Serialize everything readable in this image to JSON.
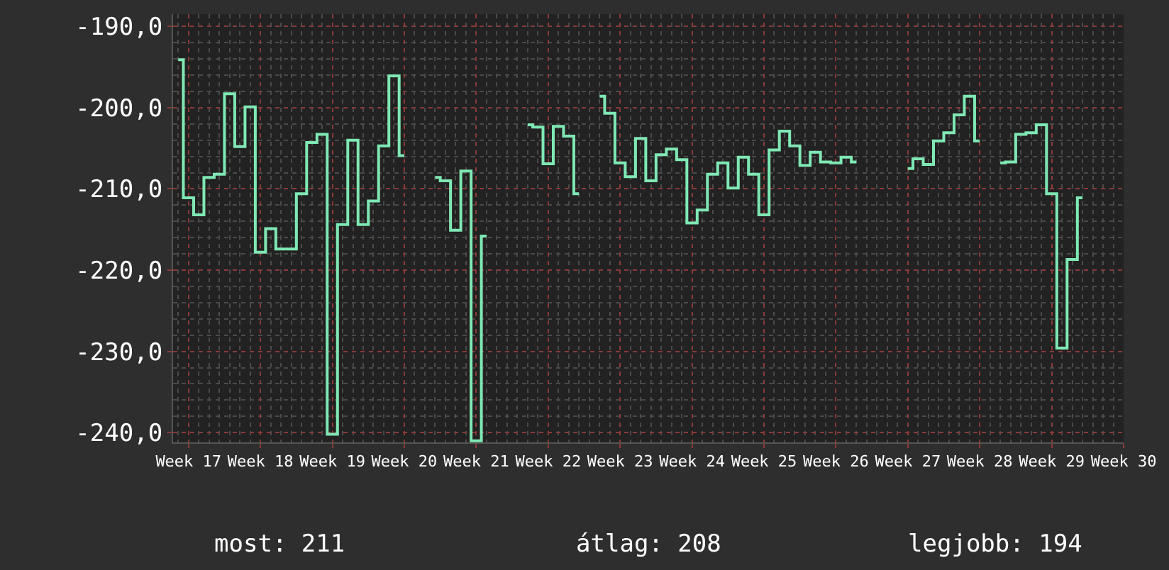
{
  "chart_data": {
    "type": "step",
    "categories": [
      null,
      "Week 17",
      null,
      null,
      null,
      null,
      null,
      null,
      "Week 18",
      null,
      null,
      null,
      null,
      null,
      null,
      "Week 19",
      null,
      null,
      null,
      null,
      null,
      null,
      "Week 20",
      null,
      null,
      null,
      null,
      null,
      null,
      "Week 21",
      null,
      null,
      null,
      null,
      null,
      null,
      "Week 22",
      null,
      null,
      null,
      null,
      null,
      null,
      "Week 23",
      null,
      null,
      null,
      null,
      null,
      null,
      "Week 24",
      null,
      null,
      null,
      null,
      null,
      null,
      "Week 25",
      null,
      null,
      null,
      null,
      null,
      null,
      "Week 26",
      null,
      null,
      null,
      null,
      null,
      null,
      "Week 27",
      null,
      null,
      null,
      null,
      null,
      null,
      "Week 28",
      null,
      null,
      null,
      null,
      null,
      null,
      "Week 29",
      null,
      null,
      null,
      null,
      null,
      null,
      "Week 30"
    ],
    "series": [
      {
        "color": "#7fe8b4",
        "values": [
          -194.1,
          -211.1,
          -213.2,
          -208.6,
          -208.2,
          -198.3,
          -204.8,
          -199.9,
          -217.8,
          -214.9,
          -217.4,
          -217.4,
          -210.6,
          -204.3,
          -203.3,
          -240.2,
          -214.4,
          -204.0,
          -214.4,
          -211.5,
          -204.7,
          -196.1,
          -205.9,
          null,
          null,
          -208.6,
          -209.0,
          -215.1,
          -207.8,
          -241.0,
          -215.8,
          null,
          null,
          null,
          -202.1,
          -202.4,
          -206.9,
          -202.3,
          -203.5,
          -210.6,
          null,
          -198.6,
          -200.7,
          -206.8,
          -208.5,
          -203.8,
          -209.0,
          -205.8,
          -205.1,
          -206.4,
          -214.2,
          -212.6,
          -208.2,
          -206.8,
          -209.9,
          -206.1,
          -208.2,
          -213.2,
          -205.2,
          -202.9,
          -204.7,
          -207.1,
          -205.5,
          -206.7,
          -206.8,
          -206.1,
          -206.7,
          null,
          null,
          null,
          null,
          -207.5,
          -206.3,
          -207.0,
          -204.1,
          -203.1,
          -200.9,
          -198.6,
          -204.1,
          null,
          -206.8,
          -206.7,
          -203.3,
          -203.1,
          -202.1,
          -210.6,
          -229.6,
          -218.7,
          -211.1,
          null,
          null,
          null,
          null
        ]
      }
    ],
    "ylim": [
      -241.2,
      -188.5
    ],
    "yticks": [
      {
        "value": -240,
        "label": "-240,0"
      },
      {
        "value": -230,
        "label": "-230,0"
      },
      {
        "value": -220,
        "label": "-220,0"
      },
      {
        "value": -210,
        "label": "-210,0"
      },
      {
        "value": -200,
        "label": "-200,0"
      },
      {
        "value": -190,
        "label": "-190,0"
      }
    ],
    "grid": true,
    "marker": "none",
    "line_style": "solid",
    "annotations": [
      "most: 211",
      "átlag: 208",
      "legjobb: 194"
    ]
  }
}
